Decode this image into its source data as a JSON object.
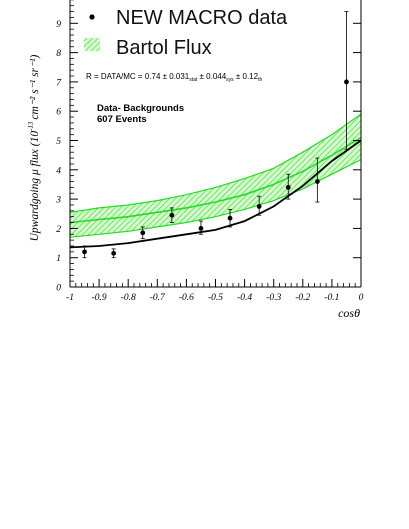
{
  "chart_data": {
    "type": "scatter",
    "xlabel": "cosθ",
    "ylabel_main": "Upwardgoing μ flux (10",
    "ylabel_exp": "-13",
    "ylabel_units": "cm⁻² s⁻¹ sr⁻¹)",
    "xlim": [
      -1,
      0
    ],
    "ylim": [
      0,
      9.6
    ],
    "x_ticks": [
      -1,
      -0.9,
      -0.8,
      -0.7,
      -0.6,
      -0.5,
      -0.4,
      -0.3,
      -0.2,
      -0.1,
      0
    ],
    "x_tick_labels": [
      "-1",
      "-0.9",
      "-0.8",
      "-0.7",
      "-0.6",
      "-0.5",
      "-0.4",
      "-0.3",
      "-0.2",
      "-0.1",
      "0"
    ],
    "y_ticks": [
      0,
      1,
      2,
      3,
      4,
      5,
      6,
      7,
      8,
      9
    ],
    "y_tick_labels": [
      "0",
      "1",
      "2",
      "3",
      "4",
      "5",
      "6",
      "7",
      "8",
      "9"
    ],
    "legend": [
      {
        "label": "NEW MACRO data",
        "marker": "dot"
      },
      {
        "label": "Bartol Flux",
        "marker": "hatched-band"
      }
    ],
    "annotations": {
      "ratio": "R = DATA/MC = 0.74 ± 0.031",
      "ratio_stat": "stat",
      "ratio_mid": " ± 0.044",
      "ratio_sys": "sys",
      "ratio_end": " ±  0.12",
      "ratio_th": "th",
      "note_line1": "Data- Backgrounds",
      "note_line2": "607 Events"
    },
    "series": [
      {
        "name": "NEW MACRO data",
        "type": "points",
        "x": [
          -0.95,
          -0.85,
          -0.75,
          -0.65,
          -0.55,
          -0.45,
          -0.35,
          -0.25,
          -0.15,
          -0.05
        ],
        "y": [
          1.2,
          1.15,
          1.85,
          2.45,
          2.0,
          2.35,
          2.75,
          3.4,
          3.6,
          7.0
        ],
        "err_low": [
          0.2,
          0.15,
          0.2,
          0.25,
          0.2,
          0.3,
          0.3,
          0.4,
          0.7,
          2.3
        ],
        "err_high": [
          0.2,
          0.15,
          0.2,
          0.25,
          0.25,
          0.3,
          0.35,
          0.45,
          0.8,
          2.4
        ]
      },
      {
        "name": "Bartol Flux",
        "type": "band",
        "x": [
          -1,
          -0.9,
          -0.8,
          -0.7,
          -0.6,
          -0.5,
          -0.4,
          -0.3,
          -0.2,
          -0.1,
          0
        ],
        "y": [
          2.2,
          2.3,
          2.4,
          2.55,
          2.7,
          2.9,
          3.15,
          3.5,
          3.95,
          4.5,
          5.1
        ],
        "low": [
          1.7,
          1.8,
          1.9,
          2.05,
          2.2,
          2.4,
          2.65,
          2.95,
          3.35,
          3.85,
          4.35
        ],
        "high": [
          2.55,
          2.7,
          2.8,
          2.95,
          3.15,
          3.4,
          3.7,
          4.05,
          4.6,
          5.2,
          5.9
        ]
      },
      {
        "name": "",
        "type": "line",
        "x": [
          -1,
          -0.9,
          -0.8,
          -0.7,
          -0.6,
          -0.5,
          -0.4,
          -0.3,
          -0.2,
          -0.1,
          0
        ],
        "y": [
          1.35,
          1.4,
          1.5,
          1.65,
          1.8,
          1.95,
          2.25,
          2.75,
          3.45,
          4.3,
          5.0
        ]
      }
    ]
  }
}
